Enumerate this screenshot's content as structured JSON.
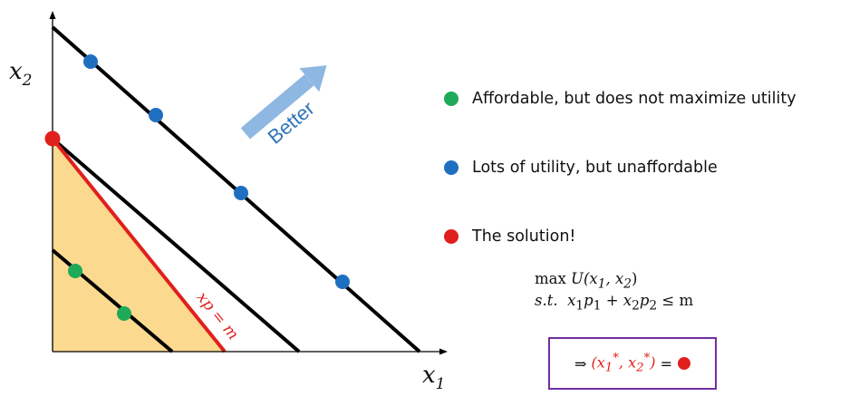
{
  "axes": {
    "x_label": "x",
    "x_sub": "1",
    "y_label": "x",
    "y_sub": "2"
  },
  "budget_label": "xp = m",
  "arrow_label": "Better",
  "colors": {
    "affordable": "#1faa59",
    "unaffordable": "#1f6fc0",
    "solution": "#e0201c",
    "feasible_region": "#fbd98e",
    "budget_line": "#e0201c",
    "box_border": "#7030a0",
    "arrow": "#8eb8e2"
  },
  "legend": [
    {
      "color": "#1faa59",
      "text": "Affordable, but does not maximize utility"
    },
    {
      "color": "#1f6fc0",
      "text": "Lots of utility, but unaffordable"
    },
    {
      "color": "#e0201c",
      "text": "The solution!"
    }
  ],
  "problem": {
    "objective": "max",
    "objective_fn": "U(x",
    "constraint_prefix": "s.t.",
    "constraint_rhs": "≤ m"
  },
  "solution_box": {
    "implies": "⇒"
  }
}
